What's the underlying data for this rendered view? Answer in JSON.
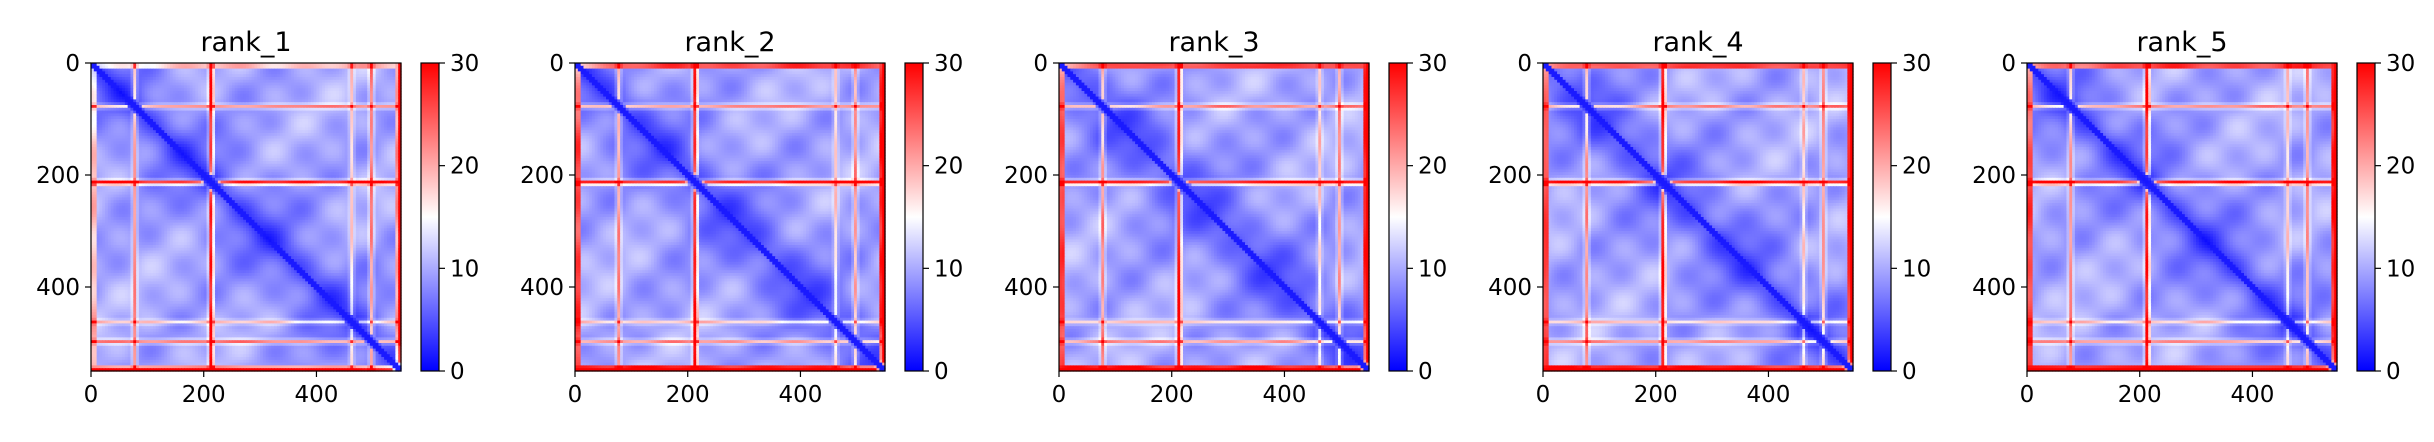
{
  "colormap": {
    "name": "bwr",
    "low": "#0000ff",
    "mid": "#ffffff",
    "high": "#ff0000"
  },
  "chart_data": [
    {
      "type": "heatmap",
      "title": "rank_1",
      "xlim": [
        0,
        550
      ],
      "ylim": [
        550,
        0
      ],
      "x_ticks": [
        0,
        200,
        400
      ],
      "y_ticks": [
        0,
        200,
        400
      ],
      "colorbar": {
        "range": [
          0,
          30
        ],
        "ticks": [
          0,
          10,
          20,
          30
        ]
      },
      "bands": [
        75,
        210,
        460,
        495,
        545
      ],
      "bands_strength": [
        0.8,
        1.0,
        0.55,
        0.85,
        0.85
      ],
      "edge_red": 0.5
    },
    {
      "type": "heatmap",
      "title": "rank_2",
      "xlim": [
        0,
        550
      ],
      "ylim": [
        550,
        0
      ],
      "x_ticks": [
        0,
        200,
        400
      ],
      "y_ticks": [
        0,
        200,
        400
      ],
      "colorbar": {
        "range": [
          0,
          30
        ],
        "ticks": [
          0,
          10,
          20,
          30
        ]
      },
      "bands": [
        75,
        210,
        460,
        495,
        545
      ],
      "bands_strength": [
        0.8,
        1.0,
        0.55,
        0.75,
        0.9
      ],
      "edge_red": 0.9
    },
    {
      "type": "heatmap",
      "title": "rank_3",
      "xlim": [
        0,
        550
      ],
      "ylim": [
        550,
        0
      ],
      "x_ticks": [
        0,
        200,
        400
      ],
      "y_ticks": [
        0,
        200,
        400
      ],
      "colorbar": {
        "range": [
          0,
          30
        ],
        "ticks": [
          0,
          10,
          20,
          30
        ]
      },
      "bands": [
        75,
        210,
        460,
        495,
        545
      ],
      "bands_strength": [
        0.8,
        1.0,
        0.55,
        0.75,
        0.9
      ],
      "edge_red": 0.9
    },
    {
      "type": "heatmap",
      "title": "rank_4",
      "xlim": [
        0,
        550
      ],
      "ylim": [
        550,
        0
      ],
      "x_ticks": [
        0,
        200,
        400
      ],
      "y_ticks": [
        0,
        200,
        400
      ],
      "colorbar": {
        "range": [
          0,
          30
        ],
        "ticks": [
          0,
          10,
          20,
          30
        ]
      },
      "bands": [
        75,
        210,
        460,
        495,
        545
      ],
      "bands_strength": [
        0.8,
        1.0,
        0.55,
        0.75,
        0.9
      ],
      "edge_red": 0.9
    },
    {
      "type": "heatmap",
      "title": "rank_5",
      "xlim": [
        0,
        550
      ],
      "ylim": [
        550,
        0
      ],
      "x_ticks": [
        0,
        200,
        400
      ],
      "y_ticks": [
        0,
        200,
        400
      ],
      "colorbar": {
        "range": [
          0,
          30
        ],
        "ticks": [
          0,
          10,
          20,
          30
        ]
      },
      "bands": [
        75,
        210,
        460,
        495,
        545
      ],
      "bands_strength": [
        0.8,
        1.0,
        0.55,
        0.75,
        0.9
      ],
      "edge_red": 0.9
    }
  ]
}
